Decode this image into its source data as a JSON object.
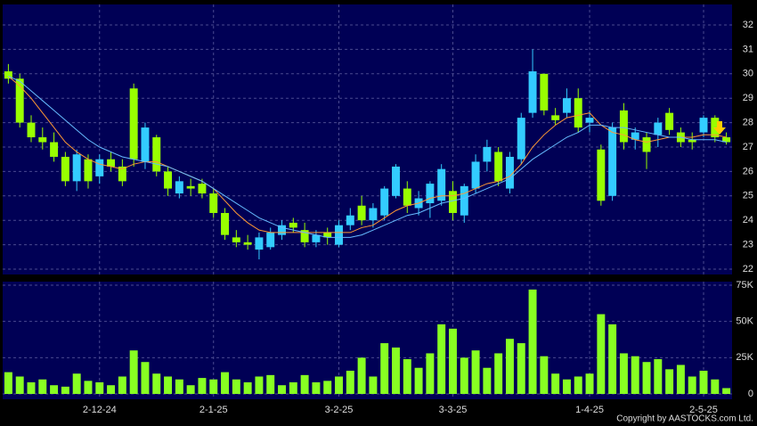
{
  "chart_data": [
    {
      "type": "candlestick",
      "categories": [
        null,
        null,
        null,
        null,
        null,
        null,
        null,
        null,
        "2-12-24",
        null,
        null,
        null,
        null,
        null,
        null,
        null,
        null,
        null,
        "2-1-25",
        null,
        null,
        null,
        null,
        null,
        null,
        null,
        null,
        null,
        null,
        "3-2-25",
        null,
        null,
        null,
        null,
        null,
        null,
        null,
        null,
        null,
        "3-3-25",
        null,
        null,
        null,
        null,
        null,
        null,
        null,
        null,
        null,
        null,
        null,
        "1-4-25",
        null,
        null,
        null,
        null,
        null,
        null,
        null,
        null,
        null,
        "2-5-25",
        null,
        null
      ],
      "open": [
        30.1,
        29.8,
        28.0,
        27.4,
        27.2,
        26.6,
        25.6,
        26.5,
        25.8,
        26.5,
        26.2,
        29.4,
        26.4,
        27.4,
        26.0,
        25.1,
        25.4,
        25.5,
        25.1,
        24.3,
        23.3,
        23.1,
        22.8,
        22.9,
        23.4,
        23.9,
        23.6,
        23.1,
        23.5,
        23.0,
        23.8,
        24.6,
        24.0,
        24.2,
        25.0,
        25.3,
        24.5,
        24.7,
        24.8,
        25.2,
        24.2,
        25.3,
        26.4,
        26.8,
        25.3,
        26.5,
        28.4,
        30.0,
        28.3,
        28.4,
        29.0,
        28.0,
        26.9,
        25.0,
        28.5,
        27.3,
        27.4,
        27.5,
        28.4,
        27.6,
        27.3,
        27.6,
        28.2,
        27.4
      ],
      "high": [
        30.4,
        30.0,
        28.3,
        27.8,
        27.6,
        26.8,
        26.9,
        26.7,
        26.7,
        26.8,
        26.5,
        29.6,
        28.0,
        27.5,
        26.2,
        25.8,
        25.7,
        25.7,
        25.3,
        24.5,
        23.6,
        23.4,
        23.5,
        23.7,
        24.0,
        24.1,
        23.9,
        23.6,
        23.7,
        24.0,
        24.5,
        25.0,
        24.7,
        25.4,
        26.3,
        25.6,
        25.2,
        25.6,
        26.3,
        25.6,
        25.5,
        26.7,
        27.3,
        27.0,
        26.8,
        28.4,
        31.0,
        30.0,
        28.6,
        29.4,
        29.4,
        28.5,
        27.1,
        28.0,
        28.8,
        27.8,
        27.6,
        28.2,
        28.6,
        27.8,
        27.6,
        28.3,
        28.3,
        27.6
      ],
      "low": [
        29.6,
        27.8,
        27.2,
        26.9,
        26.4,
        25.4,
        25.2,
        25.3,
        25.5,
        26.0,
        25.4,
        26.2,
        26.1,
        25.8,
        25.0,
        24.9,
        25.0,
        24.9,
        24.1,
        23.2,
        22.9,
        22.8,
        22.4,
        22.8,
        23.2,
        23.5,
        22.9,
        22.9,
        23.0,
        22.9,
        23.6,
        23.8,
        23.7,
        24.0,
        24.9,
        24.3,
        24.2,
        24.1,
        24.6,
        24.0,
        23.9,
        25.1,
        26.0,
        25.4,
        25.1,
        26.3,
        28.2,
        28.3,
        27.9,
        28.2,
        27.6,
        27.6,
        24.6,
        24.8,
        26.9,
        26.9,
        26.1,
        27.0,
        27.5,
        27.0,
        26.9,
        27.4,
        27.2,
        27.1
      ],
      "close": [
        29.8,
        28.0,
        27.4,
        27.2,
        26.6,
        25.6,
        26.7,
        25.6,
        26.5,
        26.2,
        25.6,
        26.5,
        27.8,
        26.0,
        25.3,
        25.6,
        25.3,
        25.1,
        24.3,
        23.4,
        23.1,
        23.0,
        23.3,
        23.5,
        23.8,
        23.7,
        23.1,
        23.4,
        23.3,
        23.8,
        24.2,
        24.0,
        24.5,
        25.3,
        26.2,
        24.6,
        24.9,
        25.5,
        26.1,
        24.3,
        25.4,
        26.4,
        27.0,
        25.6,
        26.6,
        28.2,
        30.1,
        28.5,
        28.1,
        29.0,
        27.8,
        28.2,
        24.8,
        27.8,
        27.2,
        27.6,
        26.8,
        28.0,
        27.7,
        27.2,
        27.2,
        28.2,
        27.4,
        27.2
      ],
      "up_color": "#33ccff",
      "down_color": "#99ff00",
      "series": [
        {
          "color": "#ff9933",
          "values": [
            29.9,
            29.5,
            29.0,
            28.4,
            27.8,
            27.2,
            26.8,
            26.5,
            26.3,
            26.2,
            26.1,
            26.3,
            26.4,
            26.4,
            26.2,
            26.0,
            25.8,
            25.6,
            25.3,
            24.8,
            24.3,
            23.9,
            23.6,
            23.5,
            23.5,
            23.5,
            23.5,
            23.5,
            23.5,
            23.5,
            23.5,
            23.7,
            23.8,
            24.1,
            24.4,
            24.6,
            24.7,
            24.9,
            25.0,
            25.0,
            25.1,
            25.3,
            25.5,
            25.6,
            25.8,
            26.3,
            27.0,
            27.5,
            27.9,
            28.2,
            28.3,
            28.4,
            27.9,
            27.6,
            27.5,
            27.3,
            27.2,
            27.3,
            27.4,
            27.4,
            27.4,
            27.5,
            27.5,
            27.4
          ]
        },
        {
          "color": "#66bbff",
          "values": [
            29.9,
            29.7,
            29.3,
            28.9,
            28.5,
            28.1,
            27.7,
            27.3,
            27.0,
            26.8,
            26.6,
            26.5,
            26.4,
            26.3,
            26.2,
            26.0,
            25.8,
            25.6,
            25.3,
            25.0,
            24.7,
            24.4,
            24.1,
            23.9,
            23.7,
            23.6,
            23.5,
            23.4,
            23.3,
            23.3,
            23.3,
            23.4,
            23.6,
            23.8,
            24.0,
            24.2,
            24.3,
            24.5,
            24.7,
            24.8,
            24.9,
            25.1,
            25.3,
            25.5,
            25.7,
            26.1,
            26.5,
            26.8,
            27.1,
            27.4,
            27.6,
            27.9,
            27.9,
            27.8,
            27.8,
            27.7,
            27.6,
            27.5,
            27.4,
            27.4,
            27.3,
            27.3,
            27.3,
            27.2
          ]
        }
      ],
      "ylim": [
        22,
        32
      ],
      "yticks": [
        22,
        23,
        24,
        25,
        26,
        27,
        28,
        29,
        30,
        31,
        32
      ],
      "grid": true
    },
    {
      "type": "bar",
      "color": "#88ff22",
      "values": [
        15000,
        12000,
        8000,
        10000,
        6000,
        5000,
        14000,
        9000,
        8000,
        6000,
        12000,
        30000,
        22000,
        14000,
        12000,
        10000,
        6000,
        11000,
        10000,
        15000,
        10000,
        8000,
        12000,
        13000,
        6000,
        8000,
        13000,
        8000,
        9000,
        12000,
        16000,
        25000,
        12000,
        35000,
        32000,
        24000,
        18000,
        28000,
        48000,
        45000,
        25000,
        30000,
        18000,
        28000,
        38000,
        35000,
        72000,
        26000,
        14000,
        10000,
        12000,
        14000,
        55000,
        48000,
        28000,
        26000,
        22000,
        24000,
        17000,
        20000,
        12000,
        16000,
        10000,
        4000
      ],
      "ylim": [
        0,
        75000
      ],
      "yticks": [
        0,
        {
          "value": 25000,
          "label": "25K"
        },
        {
          "value": 50000,
          "label": "50K"
        },
        {
          "value": 75000,
          "label": "75K"
        }
      ],
      "grid": true
    }
  ],
  "copyright": "Copyright by AASTOCKS.com Ltd."
}
